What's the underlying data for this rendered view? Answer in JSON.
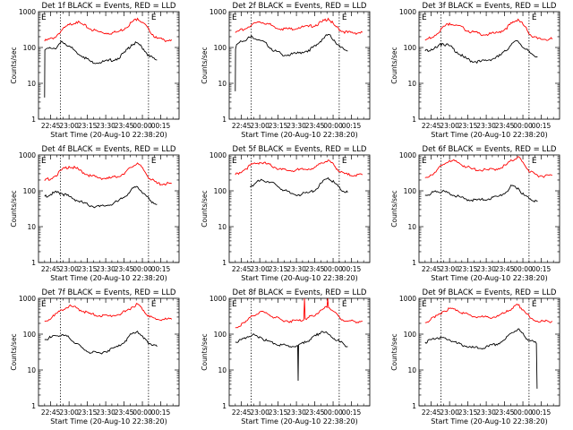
{
  "figure": {
    "background": "#ffffff",
    "axis_color": "#000000",
    "events_color": "#000000",
    "lld_color": "#ff0000",
    "tick_labels_x": [
      "22:45",
      "23:00",
      "23:15",
      "23:30",
      "23:45",
      "00:00",
      "00:15"
    ],
    "tick_labels_y": [
      "1",
      "10",
      "100",
      "1000"
    ],
    "xlabel": "Start Time (20-Aug-10 22:38:20)",
    "ylabel": "Counts/sec",
    "marker_label": "E"
  },
  "chart_data": [
    {
      "type": "line",
      "title": "Det 1f BLACK = Events, RED = LLD",
      "xlabel": "Start Time (20-Aug-10 22:38:20)",
      "ylabel": "Counts/sec",
      "xlim": [
        -10,
        105
      ],
      "ylim": [
        1,
        1000
      ],
      "ylog": true,
      "grid": false,
      "vlines": [
        8,
        80
      ],
      "series": [
        {
          "role": "lld",
          "color": "#ff0000",
          "x": [
            -5,
            3,
            9,
            15,
            21,
            27,
            33,
            40,
            47,
            55,
            61,
            66,
            71,
            76,
            81,
            87,
            93,
            99
          ],
          "values": [
            150,
            190,
            300,
            430,
            520,
            420,
            320,
            270,
            250,
            270,
            350,
            500,
            650,
            480,
            280,
            180,
            160,
            165
          ]
        },
        {
          "role": "events",
          "color": "#000000",
          "x": [
            -5,
            -4.8,
            -4,
            0,
            5,
            9,
            15,
            21,
            27,
            33,
            40,
            47,
            55,
            61,
            66,
            71,
            76,
            81,
            87
          ],
          "values": [
            4,
            85,
            90,
            95,
            100,
            150,
            110,
            75,
            55,
            40,
            38,
            42,
            50,
            75,
            120,
            135,
            90,
            55,
            45
          ]
        }
      ]
    },
    {
      "type": "line",
      "title": "Det 2f BLACK = Events, RED = LLD",
      "xlabel": "Start Time (20-Aug-10 22:38:20)",
      "ylabel": "Counts/sec",
      "xlim": [
        -10,
        105
      ],
      "ylim": [
        1,
        1000
      ],
      "ylog": true,
      "grid": false,
      "vlines": [
        8,
        80
      ],
      "series": [
        {
          "role": "lld",
          "color": "#ff0000",
          "x": [
            -5,
            3,
            9,
            15,
            21,
            27,
            33,
            40,
            47,
            55,
            61,
            66,
            71,
            76,
            81,
            87,
            93,
            99
          ],
          "values": [
            260,
            330,
            450,
            520,
            470,
            380,
            330,
            330,
            360,
            380,
            430,
            520,
            650,
            420,
            300,
            260,
            255,
            265
          ]
        },
        {
          "role": "events",
          "color": "#000000",
          "x": [
            -5,
            -4.8,
            -4,
            0,
            5,
            9,
            15,
            21,
            27,
            33,
            40,
            47,
            55,
            61,
            66,
            71,
            76,
            81,
            87
          ],
          "values": [
            6,
            90,
            120,
            150,
            180,
            200,
            160,
            120,
            80,
            65,
            62,
            70,
            85,
            110,
            170,
            230,
            160,
            100,
            80
          ]
        }
      ]
    },
    {
      "type": "line",
      "title": "Det 3f BLACK = Events, RED = LLD",
      "xlabel": "Start Time (20-Aug-10 22:38:20)",
      "ylabel": "Counts/sec",
      "xlim": [
        -10,
        105
      ],
      "ylim": [
        1,
        1000
      ],
      "ylog": true,
      "grid": false,
      "vlines": [
        8,
        80
      ],
      "series": [
        {
          "role": "lld",
          "color": "#ff0000",
          "x": [
            -5,
            3,
            9,
            15,
            21,
            27,
            33,
            40,
            47,
            55,
            61,
            66,
            71,
            76,
            81,
            87,
            93,
            99
          ],
          "values": [
            160,
            220,
            350,
            480,
            420,
            330,
            270,
            240,
            230,
            260,
            340,
            480,
            620,
            400,
            230,
            175,
            170,
            170
          ]
        },
        {
          "role": "events",
          "color": "#000000",
          "x": [
            -5,
            0,
            5,
            9,
            15,
            21,
            27,
            33,
            40,
            47,
            55,
            61,
            66,
            71,
            76,
            81,
            87
          ],
          "values": [
            80,
            90,
            100,
            130,
            110,
            75,
            52,
            42,
            40,
            45,
            55,
            80,
            130,
            150,
            95,
            70,
            55
          ]
        }
      ]
    },
    {
      "type": "line",
      "title": "Det 4f BLACK = Events, RED = LLD",
      "xlabel": "Start Time (20-Aug-10 22:38:20)",
      "ylabel": "Counts/sec",
      "xlim": [
        -10,
        105
      ],
      "ylim": [
        1,
        1000
      ],
      "ylog": true,
      "grid": false,
      "vlines": [
        8,
        80
      ],
      "series": [
        {
          "role": "lld",
          "color": "#ff0000",
          "x": [
            -5,
            3,
            9,
            15,
            21,
            27,
            33,
            40,
            47,
            55,
            61,
            66,
            71,
            76,
            81,
            87,
            93,
            99
          ],
          "values": [
            190,
            250,
            380,
            480,
            420,
            320,
            260,
            230,
            220,
            250,
            330,
            450,
            600,
            380,
            220,
            160,
            155,
            160
          ]
        },
        {
          "role": "events",
          "color": "#000000",
          "x": [
            -5,
            0,
            5,
            9,
            15,
            21,
            27,
            33,
            40,
            47,
            55,
            61,
            66,
            71,
            76,
            81,
            87
          ],
          "values": [
            70,
            80,
            90,
            85,
            70,
            55,
            45,
            38,
            36,
            40,
            50,
            70,
            110,
            130,
            85,
            55,
            42
          ]
        }
      ]
    },
    {
      "type": "line",
      "title": "Det 5f BLACK = Events, RED = LLD",
      "xlabel": "Start Time (20-Aug-10 22:38:20)",
      "ylabel": "Counts/sec",
      "xlim": [
        -10,
        105
      ],
      "ylim": [
        1,
        1000
      ],
      "ylog": true,
      "grid": false,
      "vlines": [
        8,
        80
      ],
      "series": [
        {
          "role": "lld",
          "color": "#ff0000",
          "x": [
            -5,
            3,
            9,
            15,
            21,
            27,
            33,
            40,
            47,
            55,
            61,
            66,
            71,
            76,
            81,
            87,
            93,
            99
          ],
          "values": [
            280,
            400,
            560,
            620,
            560,
            460,
            390,
            370,
            380,
            410,
            470,
            600,
            720,
            500,
            330,
            280,
            270,
            280
          ]
        },
        {
          "role": "events",
          "color": "#000000",
          "x": [
            7,
            12,
            17,
            22,
            28,
            33,
            40,
            47,
            55,
            61,
            66,
            71,
            76,
            81,
            87
          ],
          "values": [
            130,
            170,
            200,
            180,
            150,
            110,
            85,
            78,
            88,
            110,
            170,
            230,
            170,
            110,
            90
          ]
        }
      ]
    },
    {
      "type": "line",
      "title": "Det 6f BLACK = Events, RED = LLD",
      "xlabel": "Start Time (20-Aug-10 22:38:20)",
      "ylabel": "Counts/sec",
      "xlim": [
        -10,
        105
      ],
      "ylim": [
        1,
        1000
      ],
      "ylog": true,
      "grid": false,
      "vlines": [
        8,
        80
      ],
      "series": [
        {
          "role": "lld",
          "color": "#ff0000",
          "x": [
            -5,
            3,
            9,
            15,
            21,
            27,
            33,
            40,
            47,
            55,
            61,
            66,
            71,
            76,
            81,
            87,
            93,
            99
          ],
          "values": [
            230,
            330,
            520,
            700,
            640,
            500,
            410,
            380,
            380,
            420,
            520,
            700,
            900,
            550,
            330,
            270,
            260,
            270
          ]
        },
        {
          "role": "events",
          "color": "#000000",
          "x": [
            -5,
            0,
            5,
            9,
            15,
            21,
            27,
            33,
            40,
            47,
            55,
            61,
            66,
            71,
            76,
            81,
            87
          ],
          "values": [
            75,
            85,
            95,
            95,
            85,
            70,
            60,
            55,
            55,
            60,
            70,
            90,
            140,
            120,
            75,
            60,
            50
          ]
        }
      ]
    },
    {
      "type": "line",
      "title": "Det 7f BLACK = Events, RED = LLD",
      "xlabel": "Start Time (20-Aug-10 22:38:20)",
      "ylabel": "Counts/sec",
      "xlim": [
        -10,
        105
      ],
      "ylim": [
        1,
        1000
      ],
      "ylog": true,
      "grid": false,
      "vlines": [
        8,
        80
      ],
      "series": [
        {
          "role": "lld",
          "color": "#ff0000",
          "x": [
            -5,
            3,
            9,
            15,
            21,
            27,
            33,
            40,
            47,
            55,
            61,
            66,
            71,
            76,
            81,
            87,
            93,
            99
          ],
          "values": [
            230,
            320,
            480,
            600,
            540,
            430,
            360,
            330,
            320,
            350,
            420,
            560,
            700,
            460,
            300,
            260,
            255,
            260
          ]
        },
        {
          "role": "events",
          "color": "#000000",
          "x": [
            -5,
            0,
            5,
            9,
            15,
            21,
            27,
            33,
            40,
            47,
            55,
            61,
            66,
            71,
            76,
            81,
            87
          ],
          "values": [
            70,
            80,
            90,
            95,
            80,
            55,
            38,
            30,
            30,
            35,
            45,
            65,
            100,
            120,
            75,
            55,
            45
          ]
        }
      ]
    },
    {
      "type": "line",
      "title": "Det 8f BLACK = Events, RED = LLD",
      "xlabel": "Start Time (20-Aug-10 22:38:20)",
      "ylabel": "Counts/sec",
      "xlim": [
        -10,
        105
      ],
      "ylim": [
        1,
        1000
      ],
      "ylog": true,
      "grid": false,
      "vlines": [
        8,
        80
      ],
      "series": [
        {
          "role": "lld",
          "color": "#ff0000",
          "x": [
            -5,
            3,
            9,
            15,
            21,
            27,
            33,
            40,
            47,
            51,
            51.6,
            52.2,
            55,
            61,
            66,
            70,
            70.6,
            71.2,
            76,
            81,
            87,
            93,
            99
          ],
          "values": [
            150,
            210,
            320,
            420,
            380,
            290,
            250,
            230,
            240,
            250,
            1000,
            270,
            290,
            360,
            480,
            560,
            1000,
            560,
            420,
            270,
            230,
            225,
            230
          ]
        },
        {
          "role": "events",
          "color": "#000000",
          "x": [
            -5,
            0,
            5,
            9,
            15,
            21,
            27,
            33,
            40,
            46,
            46.4,
            46.8,
            51,
            56,
            61,
            66,
            71,
            76,
            81,
            87
          ],
          "values": [
            60,
            70,
            85,
            95,
            85,
            65,
            55,
            50,
            45,
            48,
            5,
            50,
            55,
            70,
            90,
            120,
            100,
            75,
            60,
            45
          ]
        }
      ]
    },
    {
      "type": "line",
      "title": "Det 9f BLACK = Events, RED = LLD",
      "xlabel": "Start Time (20-Aug-10 22:38:20)",
      "ylabel": "Counts/sec",
      "xlim": [
        -10,
        105
      ],
      "ylim": [
        1,
        1000
      ],
      "ylog": true,
      "grid": false,
      "vlines": [
        8,
        80
      ],
      "series": [
        {
          "role": "lld",
          "color": "#ff0000",
          "x": [
            -5,
            3,
            9,
            15,
            21,
            27,
            33,
            40,
            47,
            55,
            61,
            66,
            71,
            76,
            81,
            87,
            93,
            99
          ],
          "values": [
            210,
            290,
            420,
            520,
            470,
            380,
            320,
            300,
            290,
            320,
            400,
            520,
            650,
            450,
            280,
            230,
            225,
            230
          ]
        },
        {
          "role": "events",
          "color": "#000000",
          "x": [
            -5,
            0,
            5,
            9,
            15,
            21,
            27,
            33,
            40,
            47,
            55,
            61,
            66,
            71,
            76,
            81,
            86,
            86.6
          ],
          "values": [
            60,
            70,
            80,
            80,
            70,
            55,
            48,
            42,
            40,
            45,
            55,
            75,
            110,
            140,
            90,
            65,
            55,
            3
          ]
        }
      ]
    }
  ]
}
